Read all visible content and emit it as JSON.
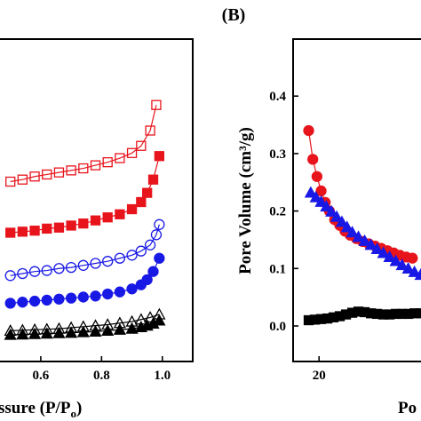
{
  "chart_data": [
    {
      "type": "scatter",
      "panel": "A (partial)",
      "xlabel_visible": "ssure (P/P",
      "xlabel_sub": "o",
      "xlabel_close": ")",
      "xlim": [
        0.46,
        1.1
      ],
      "x_ticks": [
        {
          "v": 0.6,
          "label": "0.6"
        },
        {
          "v": 0.8,
          "label": "0.8"
        },
        {
          "v": 1.0,
          "label": "1.0"
        }
      ],
      "series": [
        {
          "color": "#e8141c",
          "marker": "square",
          "fill": "none",
          "x": [
            0.5,
            0.54,
            0.58,
            0.62,
            0.66,
            0.7,
            0.74,
            0.78,
            0.82,
            0.86,
            0.9,
            0.93,
            0.96,
            0.98
          ],
          "y": [
            150,
            152,
            155,
            157,
            159,
            161,
            163,
            166,
            169,
            173,
            178,
            185,
            200,
            225
          ]
        },
        {
          "color": "#e8141c",
          "marker": "square",
          "fill": "solid",
          "x": [
            0.5,
            0.54,
            0.58,
            0.62,
            0.66,
            0.7,
            0.74,
            0.78,
            0.82,
            0.86,
            0.9,
            0.93,
            0.95,
            0.97,
            0.99
          ],
          "y": [
            100,
            101,
            102,
            104,
            105,
            107,
            109,
            112,
            115,
            118,
            123,
            130,
            139,
            152,
            175
          ]
        },
        {
          "color": "#1919e6",
          "marker": "circle",
          "fill": "none",
          "x": [
            0.5,
            0.54,
            0.58,
            0.62,
            0.66,
            0.7,
            0.74,
            0.78,
            0.82,
            0.86,
            0.9,
            0.93,
            0.96,
            0.98,
            0.99
          ],
          "y": [
            58,
            60,
            62,
            63,
            65,
            66,
            68,
            70,
            72,
            75,
            78,
            82,
            88,
            98,
            108
          ]
        },
        {
          "color": "#1919e6",
          "marker": "circle",
          "fill": "solid",
          "x": [
            0.5,
            0.54,
            0.58,
            0.62,
            0.66,
            0.7,
            0.74,
            0.78,
            0.82,
            0.86,
            0.9,
            0.93,
            0.95,
            0.97,
            0.99
          ],
          "y": [
            31,
            32,
            33,
            34,
            35,
            36,
            37,
            38,
            40,
            42,
            45,
            49,
            54,
            62,
            75
          ]
        },
        {
          "color": "#000000",
          "marker": "triangle",
          "fill": "none",
          "x": [
            0.5,
            0.54,
            0.58,
            0.62,
            0.66,
            0.7,
            0.74,
            0.78,
            0.82,
            0.86,
            0.9,
            0.93,
            0.96,
            0.99
          ],
          "y": [
            4,
            4.5,
            5,
            5.5,
            6,
            7,
            8,
            9,
            10,
            11.5,
            13,
            15,
            17,
            20
          ]
        },
        {
          "color": "#000000",
          "marker": "triangle",
          "fill": "solid",
          "x": [
            0.5,
            0.54,
            0.58,
            0.62,
            0.66,
            0.7,
            0.74,
            0.78,
            0.82,
            0.86,
            0.9,
            0.93,
            0.95,
            0.97,
            0.99
          ],
          "y": [
            0,
            0.4,
            0.8,
            1.2,
            1.6,
            2,
            2.6,
            3.2,
            4,
            5,
            6,
            7.5,
            9,
            11,
            14
          ]
        }
      ],
      "grid": false,
      "legend": "none"
    },
    {
      "type": "line",
      "panel": "B",
      "title": "(B)",
      "ylabel": "Pore Volume (cm³/g)",
      "xlabel_visible": "Po",
      "ylim": [
        -0.05,
        0.45
      ],
      "xlim": [
        17.5,
        30
      ],
      "y_ticks": [
        {
          "v": 0.0,
          "label": "0.0"
        },
        {
          "v": 0.1,
          "label": "0.1"
        },
        {
          "v": 0.2,
          "label": "0.2"
        },
        {
          "v": 0.3,
          "label": "0.3"
        },
        {
          "v": 0.4,
          "label": "0.4"
        }
      ],
      "x_ticks": [
        {
          "v": 20,
          "label": "20"
        }
      ],
      "series": [
        {
          "color": "#e8141c",
          "marker": "circle",
          "x": [
            19.0,
            19.4,
            19.8,
            20.2,
            20.6,
            21.0,
            21.5,
            22.0,
            22.5,
            23.0,
            23.6,
            24.2,
            24.8,
            25.4,
            26.0,
            26.6,
            27.2,
            27.8,
            28.4,
            29.0
          ],
          "y": [
            0.34,
            0.29,
            0.26,
            0.235,
            0.215,
            0.2,
            0.185,
            0.175,
            0.165,
            0.158,
            0.152,
            0.147,
            0.143,
            0.139,
            0.135,
            0.131,
            0.127,
            0.123,
            0.12,
            0.118
          ]
        },
        {
          "color": "#1919e6",
          "marker": "triangle",
          "x": [
            19.2,
            19.7,
            20.2,
            20.7,
            21.2,
            21.7,
            22.2,
            22.7,
            23.2,
            23.8,
            24.4,
            25.0,
            25.6,
            26.2,
            26.8,
            27.4,
            28.0,
            28.6,
            29.2,
            29.8
          ],
          "y": [
            0.232,
            0.224,
            0.216,
            0.208,
            0.199,
            0.19,
            0.181,
            0.172,
            0.163,
            0.155,
            0.148,
            0.141,
            0.134,
            0.127,
            0.12,
            0.113,
            0.106,
            0.1,
            0.094,
            0.089
          ]
        },
        {
          "color": "#000000",
          "marker": "square",
          "x": [
            19.0,
            19.6,
            20.2,
            20.8,
            21.4,
            22.0,
            22.6,
            23.2,
            23.8,
            24.4,
            25.0,
            25.6,
            26.2,
            26.8,
            27.4,
            28.0,
            28.6,
            29.2,
            29.8
          ],
          "y": [
            0.01,
            0.011,
            0.012,
            0.013,
            0.015,
            0.017,
            0.02,
            0.023,
            0.025,
            0.024,
            0.022,
            0.021,
            0.02,
            0.02,
            0.021,
            0.021,
            0.021,
            0.022,
            0.022
          ]
        }
      ],
      "grid": false,
      "legend": "none"
    }
  ]
}
